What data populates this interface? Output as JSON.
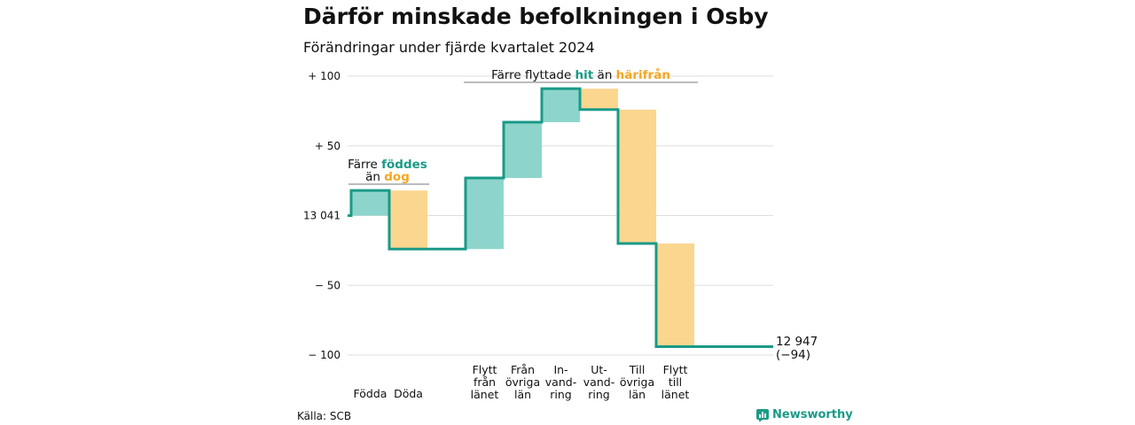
{
  "title": "Därför minskade befolkningen i Osby",
  "subtitle": "Förändringar under fjärde kvartalet 2024",
  "source": "Källa: SCB",
  "brand": "Newsworthy",
  "colors": {
    "increase": "#8dd5cc",
    "decrease": "#fbd68f",
    "line": "#1a9a88",
    "grid": "#dddddd"
  },
  "chart_data": {
    "type": "bar",
    "subtype": "waterfall",
    "start_value": 13041,
    "end_value": 12947,
    "end_label": "12 947",
    "end_change": "(−94)",
    "ylim": [
      -100,
      100
    ],
    "y_ticks": [
      {
        "value": 100,
        "label": "+ 100"
      },
      {
        "value": 50,
        "label": "+  50"
      },
      {
        "value": 0,
        "label": "13 041"
      },
      {
        "value": -50,
        "label": "−  50"
      },
      {
        "value": -100,
        "label": "− 100"
      }
    ],
    "categories": [
      {
        "label": [
          "Födda"
        ],
        "value": 18
      },
      {
        "label": [
          "Döda"
        ],
        "value": -42
      },
      {
        "label": [
          ""
        ],
        "value": 0
      },
      {
        "label": [
          "Flytt",
          "från",
          "länet"
        ],
        "value": 51
      },
      {
        "label": [
          "Från",
          "övriga",
          "län"
        ],
        "value": 40
      },
      {
        "label": [
          "In-",
          "vand-",
          "ring"
        ],
        "value": 24
      },
      {
        "label": [
          "Ut-",
          "vand-",
          "ring"
        ],
        "value": -15
      },
      {
        "label": [
          "Till",
          "övriga",
          "län"
        ],
        "value": -96
      },
      {
        "label": [
          "Flytt",
          "till",
          "länet"
        ],
        "value": -74
      }
    ],
    "annotations": [
      {
        "parts": [
          "Färre ",
          "föddes"
        ],
        "line2": [
          "än ",
          "dog"
        ]
      },
      {
        "parts": [
          "Färre flyttade ",
          "hit",
          " än ",
          "härifrån"
        ]
      }
    ]
  }
}
